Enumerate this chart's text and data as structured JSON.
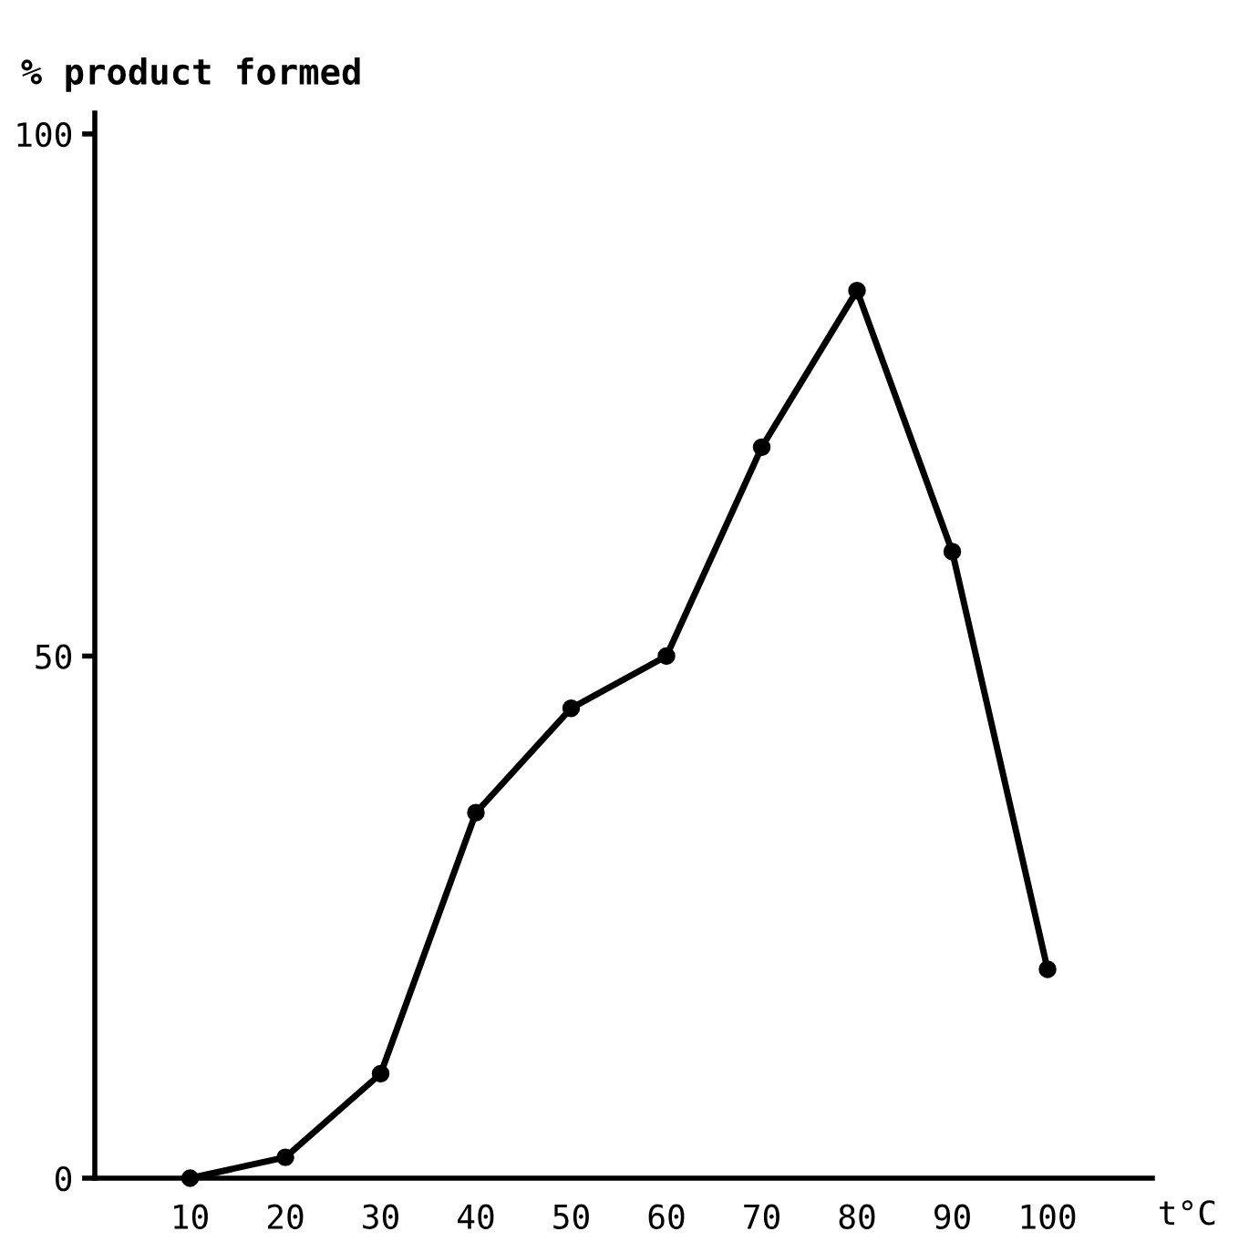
{
  "chart_data": {
    "type": "line",
    "ylabel": "% product formed",
    "xlabel": "t°C",
    "x": [
      10,
      20,
      30,
      40,
      50,
      60,
      70,
      80,
      90,
      100
    ],
    "values": [
      0,
      2,
      10,
      35,
      45,
      50,
      70,
      85,
      60,
      20
    ],
    "color": "#000000",
    "marker": "circle",
    "line_style": "solid",
    "grid": false,
    "legend": false,
    "xlim": [
      0,
      111
    ],
    "ylim": [
      0,
      102
    ],
    "xticks": [
      10,
      20,
      30,
      40,
      50,
      60,
      70,
      80,
      90,
      100
    ],
    "yticks": [
      0,
      50,
      100
    ]
  }
}
